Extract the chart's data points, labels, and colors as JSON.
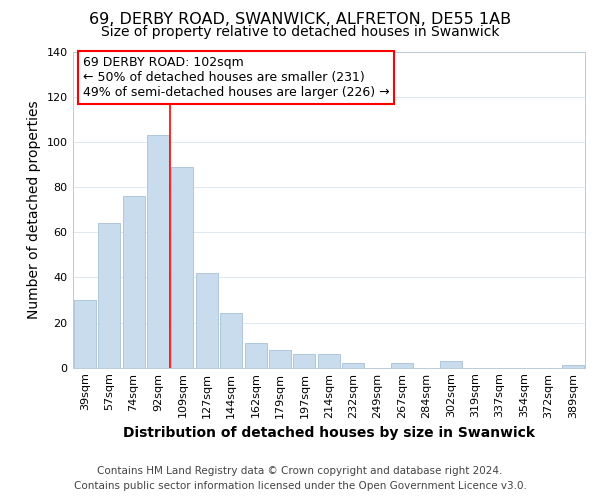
{
  "title": "69, DERBY ROAD, SWANWICK, ALFRETON, DE55 1AB",
  "subtitle": "Size of property relative to detached houses in Swanwick",
  "xlabel": "Distribution of detached houses by size in Swanwick",
  "ylabel": "Number of detached properties",
  "categories": [
    "39sqm",
    "57sqm",
    "74sqm",
    "92sqm",
    "109sqm",
    "127sqm",
    "144sqm",
    "162sqm",
    "179sqm",
    "197sqm",
    "214sqm",
    "232sqm",
    "249sqm",
    "267sqm",
    "284sqm",
    "302sqm",
    "319sqm",
    "337sqm",
    "354sqm",
    "372sqm",
    "389sqm"
  ],
  "values": [
    30,
    64,
    76,
    103,
    89,
    42,
    24,
    11,
    8,
    6,
    6,
    2,
    0,
    2,
    0,
    3,
    0,
    0,
    0,
    0,
    1
  ],
  "bar_color": "#c8dcee",
  "bar_edge_color": "#a8c0d8",
  "red_line_x": 3.5,
  "ylim": [
    0,
    140
  ],
  "yticks": [
    0,
    20,
    40,
    60,
    80,
    100,
    120,
    140
  ],
  "annotation_title": "69 DERBY ROAD: 102sqm",
  "annotation_line1": "← 50% of detached houses are smaller (231)",
  "annotation_line2": "49% of semi-detached houses are larger (226) →",
  "footer1": "Contains HM Land Registry data © Crown copyright and database right 2024.",
  "footer2": "Contains public sector information licensed under the Open Government Licence v3.0.",
  "title_fontsize": 11.5,
  "subtitle_fontsize": 10,
  "axis_label_fontsize": 10,
  "tick_fontsize": 8,
  "annotation_fontsize": 9,
  "footer_fontsize": 7.5,
  "bg_color": "#ffffff",
  "grid_color": "#dce8f0"
}
